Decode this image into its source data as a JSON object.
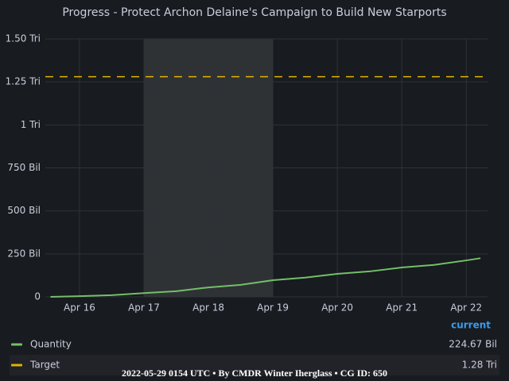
{
  "chart_data": {
    "type": "line",
    "title": "Progress - Protect Archon Delaine's Campaign to Build New Starports",
    "x": [
      15.55,
      16,
      16.5,
      17,
      17.5,
      18,
      18.5,
      19,
      19.5,
      20,
      20.5,
      21,
      21.5,
      22,
      22.22
    ],
    "series": [
      {
        "name": "Quantity",
        "color": "#73bf69",
        "values": [
          0,
          4,
          10,
          22,
          33,
          55,
          70,
          97,
          112,
          134,
          148,
          171,
          186,
          212,
          224.67
        ],
        "current_label": "224.67 Bil"
      }
    ],
    "target": {
      "name": "Target",
      "color": "#e0b400",
      "value": 1280,
      "current_label": "1.28 Tri"
    },
    "highlight_range": [
      17,
      19
    ],
    "xlim": [
      15.47,
      22.33
    ],
    "xticks": [
      {
        "value": 16,
        "label": "Apr 16"
      },
      {
        "value": 17,
        "label": "Apr 17"
      },
      {
        "value": 18,
        "label": "Apr 18"
      },
      {
        "value": 19,
        "label": "Apr 19"
      },
      {
        "value": 20,
        "label": "Apr 20"
      },
      {
        "value": 21,
        "label": "Apr 21"
      },
      {
        "value": 22,
        "label": "Apr 22"
      }
    ],
    "ylim": [
      0,
      1500
    ],
    "yticks": [
      {
        "value": 0,
        "label": "0"
      },
      {
        "value": 250,
        "label": "250 Bil"
      },
      {
        "value": 500,
        "label": "500 Bil"
      },
      {
        "value": 750,
        "label": "750 Bil"
      },
      {
        "value": 1000,
        "label": "1 Tri"
      },
      {
        "value": 1250,
        "label": "1.25 Tri"
      },
      {
        "value": 1500,
        "label": "1.50 Tri"
      }
    ],
    "grid": true,
    "legend_header": "current",
    "footer": "2022-05-29 0154 UTC • By CMDR Winter Iherglass • CG ID: 650"
  }
}
